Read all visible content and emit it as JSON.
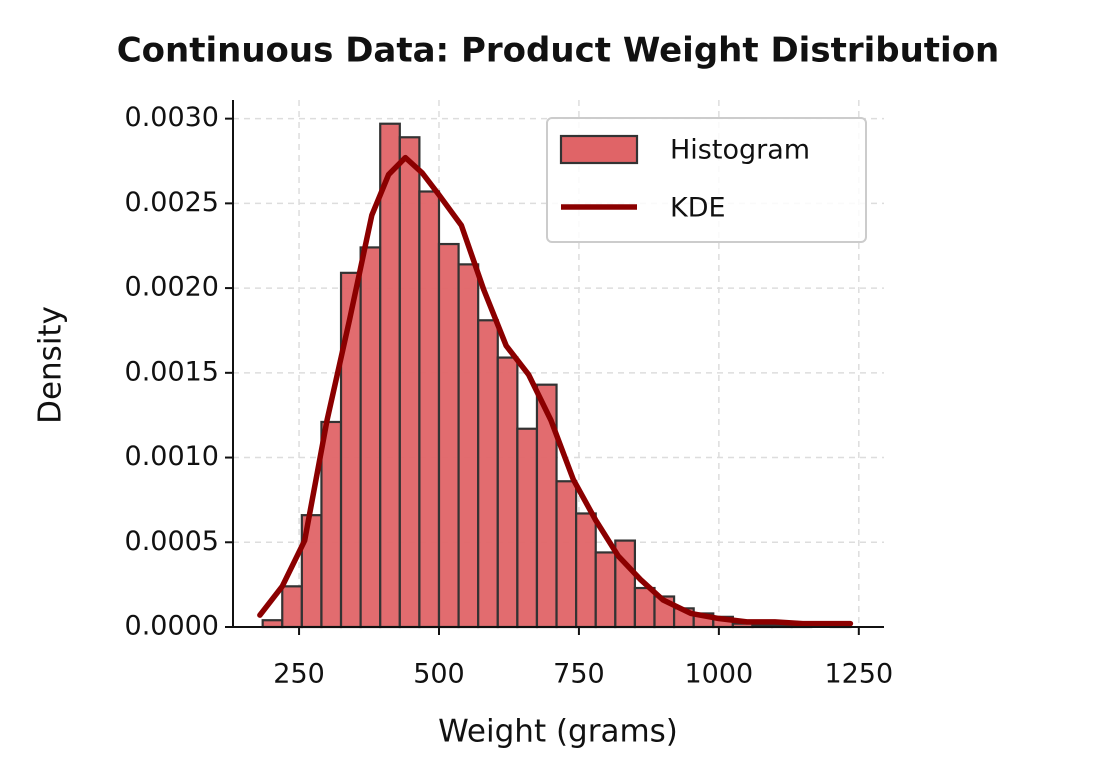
{
  "chart_data": {
    "type": "histogram",
    "title": "Continuous Data: Product Weight Distribution",
    "x_label": "Weight (grams)",
    "y_label": "Density",
    "histogram": {
      "name": "Histogram",
      "color": "#e06467",
      "edgecolor": "#333333",
      "bins": [
        185,
        220,
        255,
        290,
        325,
        360,
        395,
        430,
        465,
        500,
        535,
        570,
        605,
        640,
        675,
        710,
        745,
        780,
        815,
        850,
        885,
        920,
        955,
        990,
        1025,
        1060,
        1095,
        1130,
        1165,
        1200,
        1235
      ],
      "values": [
        4e-05,
        0.00024,
        0.00066,
        0.00121,
        0.00209,
        0.00224,
        0.00297,
        0.00289,
        0.00257,
        0.00226,
        0.00214,
        0.00181,
        0.00159,
        0.00117,
        0.00143,
        0.00086,
        0.00067,
        0.00044,
        0.00051,
        0.00023,
        0.00018,
        0.00011,
        8e-05,
        6e-05,
        2e-05,
        1e-05,
        1e-05,
        1e-05,
        0,
        2e-05
      ]
    },
    "kde": {
      "name": "KDE",
      "color": "#8b0000",
      "x": [
        180,
        220,
        260,
        300,
        340,
        380,
        410,
        440,
        470,
        500,
        540,
        580,
        620,
        660,
        700,
        740,
        780,
        820,
        860,
        900,
        950,
        1000,
        1050,
        1100,
        1150,
        1235
      ],
      "values": [
        7e-05,
        0.00024,
        0.00051,
        0.00122,
        0.00181,
        0.00243,
        0.00267,
        0.00277,
        0.00268,
        0.00255,
        0.00237,
        0.00199,
        0.00166,
        0.00149,
        0.00122,
        0.00087,
        0.00063,
        0.00042,
        0.00028,
        0.00016,
        8e-05,
        5e-05,
        3e-05,
        3e-05,
        2e-05,
        2e-05
      ]
    },
    "xlim": [
      132,
      1295
    ],
    "ylim": [
      0,
      0.00311
    ],
    "xticks": [
      250,
      500,
      750,
      1000,
      1250
    ],
    "yticks": [
      {
        "value": 0,
        "label": "0.0000"
      },
      {
        "value": 0.0005,
        "label": "0.0005"
      },
      {
        "value": 0.001,
        "label": "0.0010"
      },
      {
        "value": 0.0015,
        "label": "0.0015"
      },
      {
        "value": 0.002,
        "label": "0.0020"
      },
      {
        "value": 0.0025,
        "label": "0.0025"
      },
      {
        "value": 0.003,
        "label": "0.0030"
      }
    ],
    "grid": true,
    "legend": "upper right"
  }
}
